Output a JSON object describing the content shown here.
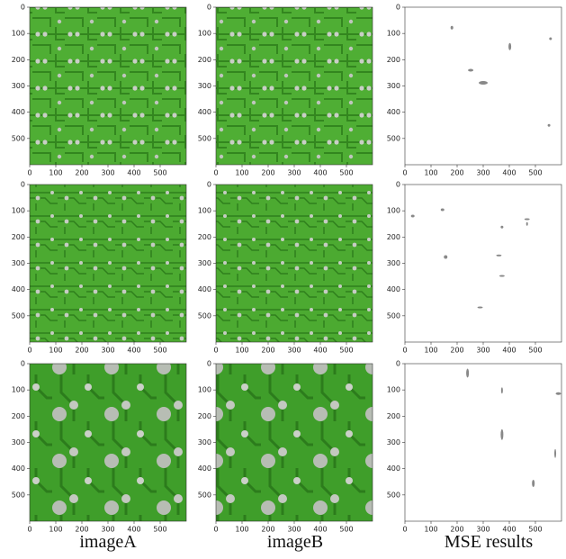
{
  "columns": [
    "imageA",
    "imageB",
    "MSE results"
  ],
  "axes": {
    "xlim": [
      0,
      600
    ],
    "ylim": [
      0,
      600
    ],
    "xticks": [
      0,
      100,
      200,
      300,
      400,
      500
    ],
    "yticks": [
      0,
      100,
      200,
      300,
      400,
      500
    ]
  }
}
